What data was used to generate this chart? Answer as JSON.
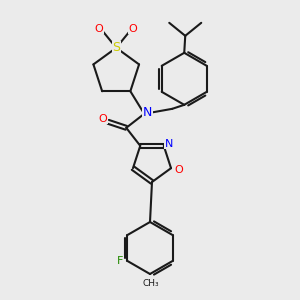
{
  "bg_color": "#ebebeb",
  "atom_colors": {
    "N": "#0000ff",
    "O": "#ff0000",
    "S": "#cccc00",
    "F": "#228800",
    "C": "#1a1a1a"
  },
  "bond_color": "#1a1a1a"
}
